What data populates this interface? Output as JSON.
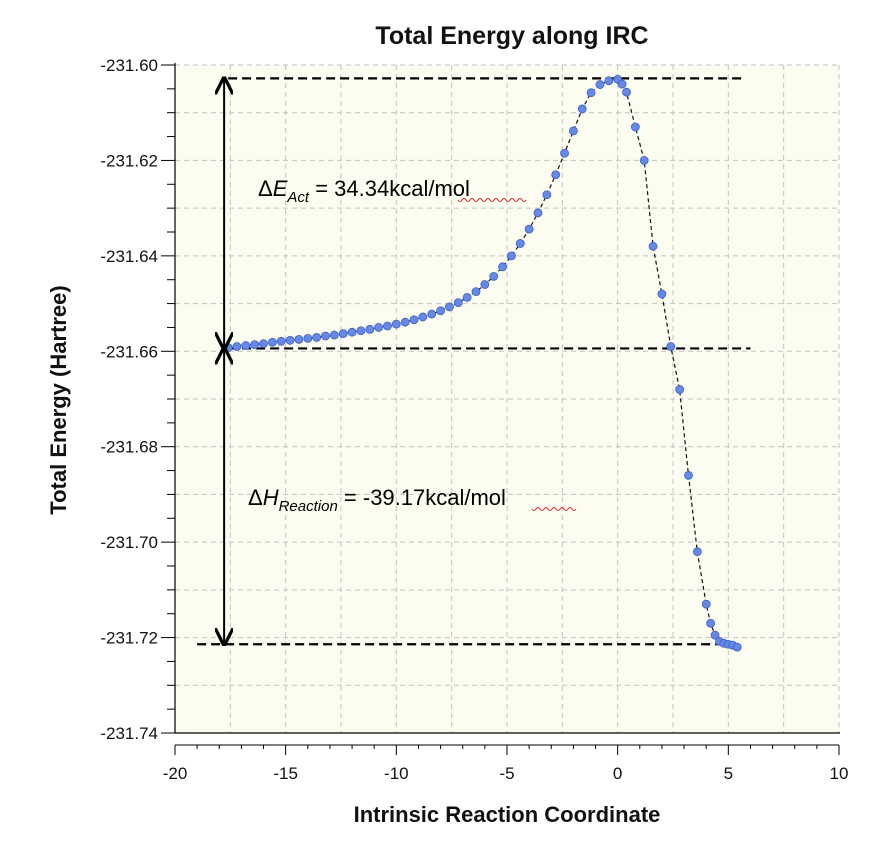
{
  "chart_data": {
    "type": "scatter",
    "title": "Total Energy along IRC",
    "xlabel": "Intrinsic Reaction Coordinate",
    "ylabel": "Total Energy (Hartree)",
    "xlim": [
      -20,
      10
    ],
    "ylim": [
      -231.74,
      -231.6
    ],
    "x_ticks": [
      -20,
      -15,
      -10,
      -5,
      0,
      5,
      10
    ],
    "x_tick_labels": [
      "-20",
      "-15",
      "-10",
      "-5",
      "0",
      "5",
      "10"
    ],
    "y_ticks": [
      -231.6,
      -231.62,
      -231.64,
      -231.66,
      -231.68,
      -231.7,
      -231.72,
      -231.74
    ],
    "y_tick_labels": [
      "-231.60",
      "-231.62",
      "-231.64",
      "-231.66",
      "-231.68",
      "-231.70",
      "-231.72",
      "-231.74"
    ],
    "grid": true,
    "background_color": "#fdfcf1",
    "marker_color": "#6688e6",
    "reference_lines": {
      "transition_state_energy": -231.6028,
      "reactant_energy": -231.6594,
      "product_energy": -231.7214,
      "transition_state_extent": [
        -17.6,
        5.6
      ],
      "reactant_extent": [
        -17.6,
        6.0
      ],
      "product_extent": [
        -19.0,
        5.5
      ]
    },
    "energy_arrows": {
      "x": -17.6,
      "activation": [
        -231.6028,
        -231.6594
      ],
      "reaction": [
        -231.6594,
        -231.7214
      ]
    },
    "series": [
      {
        "name": "IRC points",
        "x": [
          -17.6,
          -17.2,
          -16.8,
          -16.4,
          -16.0,
          -15.6,
          -15.2,
          -14.8,
          -14.4,
          -14.0,
          -13.6,
          -13.2,
          -12.8,
          -12.4,
          -12.0,
          -11.6,
          -11.2,
          -10.8,
          -10.4,
          -10.0,
          -9.6,
          -9.2,
          -8.8,
          -8.4,
          -8.0,
          -7.6,
          -7.2,
          -6.8,
          -6.4,
          -6.0,
          -5.6,
          -5.2,
          -4.8,
          -4.4,
          -4.0,
          -3.6,
          -3.2,
          -2.8,
          -2.4,
          -2.0,
          -1.6,
          -1.2,
          -0.8,
          -0.4,
          0.0,
          0.2,
          0.4,
          0.8,
          1.2,
          1.6,
          2.0,
          2.4,
          2.8,
          3.2,
          3.6,
          4.0,
          4.2,
          4.4,
          4.6,
          4.8,
          5.0,
          5.2,
          5.4
        ],
        "values": [
          -231.6592,
          -231.659,
          -231.6588,
          -231.6586,
          -231.6584,
          -231.6581,
          -231.6579,
          -231.6577,
          -231.6575,
          -231.6573,
          -231.6571,
          -231.6568,
          -231.6566,
          -231.6563,
          -231.656,
          -231.6557,
          -231.6554,
          -231.655,
          -231.6547,
          -231.6543,
          -231.6539,
          -231.6534,
          -231.6528,
          -231.6522,
          -231.6515,
          -231.6507,
          -231.6498,
          -231.6487,
          -231.6475,
          -231.646,
          -231.6443,
          -231.6423,
          -231.64,
          -231.6374,
          -231.6344,
          -231.631,
          -231.6272,
          -231.623,
          -231.6185,
          -231.6138,
          -231.6092,
          -231.6058,
          -231.6041,
          -231.6033,
          -231.603,
          -231.604,
          -231.6057,
          -231.613,
          -231.62,
          -231.638,
          -231.648,
          -231.659,
          -231.668,
          -231.686,
          -231.702,
          -231.713,
          -231.717,
          -231.7195,
          -231.7208,
          -231.7212,
          -231.7214,
          -231.7216,
          -231.722
        ]
      }
    ],
    "annotations": {
      "activation": {
        "delta": "Δ",
        "symbol": "E",
        "subscript": "Act",
        "text": " = 34.34kcal/mol"
      },
      "reaction": {
        "delta": "Δ",
        "symbol": "H",
        "subscript": "Reaction",
        "text": " = -39.17kcal/mol"
      }
    }
  }
}
